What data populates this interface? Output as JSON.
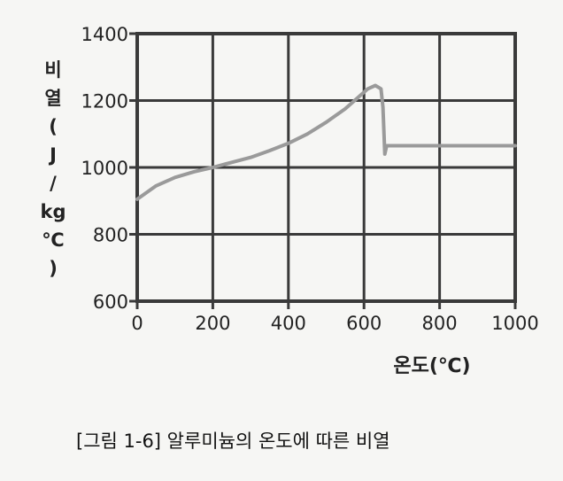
{
  "chart_data": {
    "type": "line",
    "xlabel": "온도(℃)",
    "ylabel_chars": [
      "비",
      "열",
      "(",
      "J",
      "/",
      "kg",
      "℃",
      ")"
    ],
    "xlim": [
      0,
      1000
    ],
    "ylim": [
      600,
      1400
    ],
    "x_ticks": [
      "0",
      "200",
      "400",
      "600",
      "800",
      "1000"
    ],
    "y_ticks": [
      "600",
      "800",
      "1000",
      "1200",
      "1400"
    ],
    "grid": true,
    "series": [
      {
        "color": "#9a9a9a",
        "points": [
          [
            0,
            905
          ],
          [
            50,
            945
          ],
          [
            100,
            970
          ],
          [
            150,
            987
          ],
          [
            200,
            1000
          ],
          [
            250,
            1015
          ],
          [
            300,
            1030
          ],
          [
            350,
            1050
          ],
          [
            400,
            1072
          ],
          [
            450,
            1100
          ],
          [
            500,
            1135
          ],
          [
            550,
            1175
          ],
          [
            580,
            1205
          ],
          [
            610,
            1235
          ],
          [
            630,
            1245
          ],
          [
            645,
            1235
          ],
          [
            650,
            1180
          ],
          [
            655,
            1040
          ],
          [
            660,
            1065
          ],
          [
            700,
            1065
          ],
          [
            800,
            1065
          ],
          [
            900,
            1065
          ],
          [
            1000,
            1065
          ]
        ]
      }
    ]
  },
  "caption": "[그림 1-6] 알루미늄의 온도에 따른 비열"
}
